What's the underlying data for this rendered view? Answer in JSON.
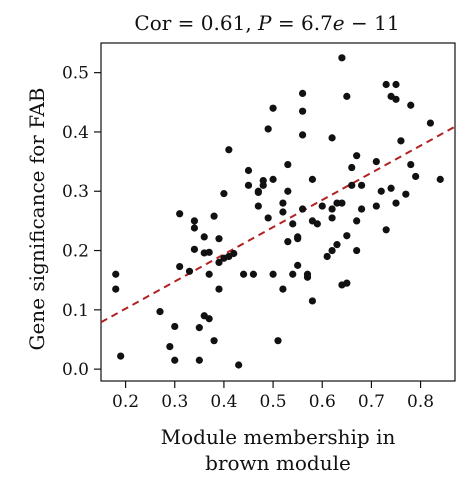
{
  "chart_data": {
    "type": "scatter",
    "title": "Cor = 0.61, P = 6.7e − 11",
    "title_parts": {
      "cor_label": "Cor = 0.61, ",
      "p_symbol": "P",
      "p_eq": " = 6.7",
      "p_e": "e",
      "p_exp": " − 11"
    },
    "xlabel_lines": [
      "Module membership in",
      "brown module"
    ],
    "ylabel": "Gene significance for FAB",
    "xlim": [
      0.15,
      0.87
    ],
    "ylim": [
      -0.02,
      0.55
    ],
    "xticks": [
      "0.2",
      "0.3",
      "0.4",
      "0.5",
      "0.6",
      "0.7",
      "0.8"
    ],
    "yticks": [
      "0.0",
      "0.1",
      "0.2",
      "0.3",
      "0.4",
      "0.5"
    ],
    "grid": false,
    "point_color": "#111111",
    "trend_color": "#b22222",
    "trendline": {
      "x": [
        0.15,
        0.87
      ],
      "y": [
        0.079,
        0.409
      ],
      "style": "dashed"
    },
    "points": [
      [
        0.18,
        0.16
      ],
      [
        0.18,
        0.135
      ],
      [
        0.19,
        0.022
      ],
      [
        0.27,
        0.097
      ],
      [
        0.29,
        0.038
      ],
      [
        0.3,
        0.072
      ],
      [
        0.3,
        0.015
      ],
      [
        0.31,
        0.262
      ],
      [
        0.31,
        0.173
      ],
      [
        0.33,
        0.165
      ],
      [
        0.34,
        0.25
      ],
      [
        0.34,
        0.238
      ],
      [
        0.34,
        0.202
      ],
      [
        0.35,
        0.015
      ],
      [
        0.35,
        0.07
      ],
      [
        0.36,
        0.223
      ],
      [
        0.36,
        0.196
      ],
      [
        0.36,
        0.09
      ],
      [
        0.37,
        0.16
      ],
      [
        0.37,
        0.197
      ],
      [
        0.37,
        0.085
      ],
      [
        0.38,
        0.258
      ],
      [
        0.38,
        0.048
      ],
      [
        0.39,
        0.18
      ],
      [
        0.39,
        0.135
      ],
      [
        0.39,
        0.22
      ],
      [
        0.4,
        0.296
      ],
      [
        0.4,
        0.187
      ],
      [
        0.41,
        0.37
      ],
      [
        0.41,
        0.19
      ],
      [
        0.42,
        0.195
      ],
      [
        0.43,
        0.007
      ],
      [
        0.44,
        0.16
      ],
      [
        0.45,
        0.31
      ],
      [
        0.45,
        0.335
      ],
      [
        0.46,
        0.16
      ],
      [
        0.47,
        0.3
      ],
      [
        0.47,
        0.298
      ],
      [
        0.47,
        0.275
      ],
      [
        0.48,
        0.31
      ],
      [
        0.48,
        0.318
      ],
      [
        0.49,
        0.405
      ],
      [
        0.49,
        0.255
      ],
      [
        0.5,
        0.44
      ],
      [
        0.5,
        0.32
      ],
      [
        0.5,
        0.16
      ],
      [
        0.51,
        0.048
      ],
      [
        0.52,
        0.28
      ],
      [
        0.52,
        0.265
      ],
      [
        0.52,
        0.135
      ],
      [
        0.53,
        0.345
      ],
      [
        0.53,
        0.215
      ],
      [
        0.53,
        0.3
      ],
      [
        0.54,
        0.16
      ],
      [
        0.54,
        0.245
      ],
      [
        0.55,
        0.223
      ],
      [
        0.55,
        0.22
      ],
      [
        0.55,
        0.175
      ],
      [
        0.56,
        0.435
      ],
      [
        0.56,
        0.395
      ],
      [
        0.56,
        0.465
      ],
      [
        0.56,
        0.27
      ],
      [
        0.57,
        0.155
      ],
      [
        0.57,
        0.16
      ],
      [
        0.58,
        0.115
      ],
      [
        0.58,
        0.25
      ],
      [
        0.58,
        0.32
      ],
      [
        0.59,
        0.245
      ],
      [
        0.6,
        0.275
      ],
      [
        0.61,
        0.19
      ],
      [
        0.62,
        0.39
      ],
      [
        0.62,
        0.2
      ],
      [
        0.62,
        0.27
      ],
      [
        0.62,
        0.255
      ],
      [
        0.63,
        0.21
      ],
      [
        0.63,
        0.28
      ],
      [
        0.64,
        0.525
      ],
      [
        0.64,
        0.28
      ],
      [
        0.64,
        0.142
      ],
      [
        0.65,
        0.46
      ],
      [
        0.65,
        0.225
      ],
      [
        0.65,
        0.145
      ],
      [
        0.66,
        0.34
      ],
      [
        0.66,
        0.31
      ],
      [
        0.67,
        0.36
      ],
      [
        0.67,
        0.25
      ],
      [
        0.67,
        0.2
      ],
      [
        0.68,
        0.27
      ],
      [
        0.68,
        0.31
      ],
      [
        0.71,
        0.35
      ],
      [
        0.71,
        0.275
      ],
      [
        0.72,
        0.3
      ],
      [
        0.73,
        0.48
      ],
      [
        0.73,
        0.235
      ],
      [
        0.74,
        0.46
      ],
      [
        0.74,
        0.305
      ],
      [
        0.75,
        0.455
      ],
      [
        0.75,
        0.48
      ],
      [
        0.75,
        0.28
      ],
      [
        0.76,
        0.385
      ],
      [
        0.77,
        0.295
      ],
      [
        0.78,
        0.445
      ],
      [
        0.78,
        0.345
      ],
      [
        0.79,
        0.325
      ],
      [
        0.82,
        0.415
      ],
      [
        0.84,
        0.32
      ]
    ]
  }
}
